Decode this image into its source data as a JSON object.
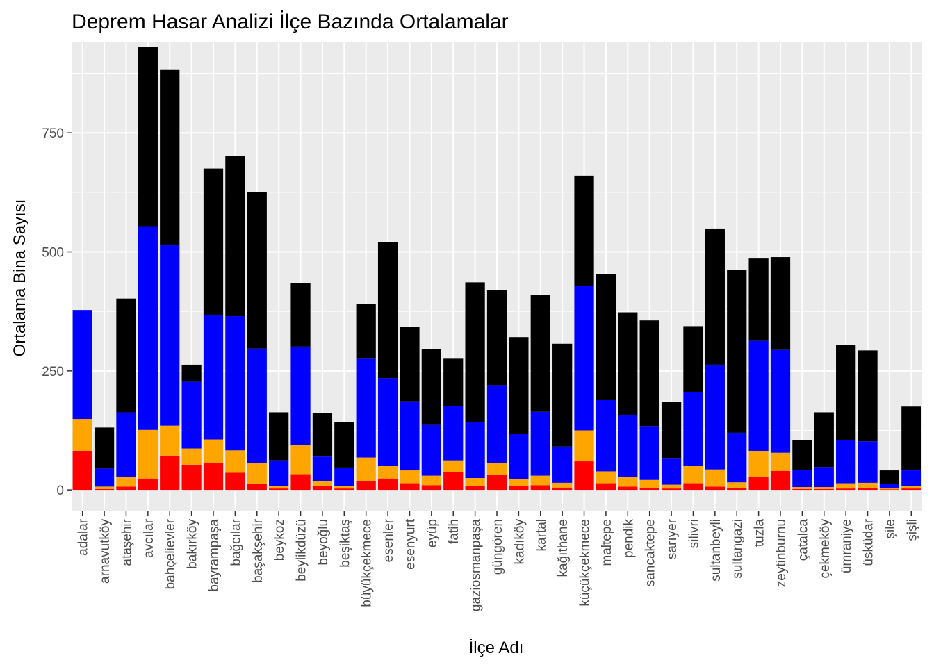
{
  "chart_data": {
    "type": "bar",
    "stacked": true,
    "title": "Deprem Hasar Analizi İlçe Bazında Ortalamalar",
    "xlabel": "İlçe Adı",
    "ylabel": "Ortalama Bina Sayısı",
    "ylim": [
      -45,
      940
    ],
    "yticks": [
      0,
      250,
      500,
      750
    ],
    "grid": true,
    "legend": "none",
    "categories": [
      "adalar",
      "arnavutköy",
      "ataşehir",
      "avcılar",
      "bahçelievler",
      "bakırköy",
      "bayrampaşa",
      "bağcılar",
      "başakşehir",
      "beykoz",
      "beylikdüzü",
      "beyoğlu",
      "beşiktaş",
      "büyükçekmece",
      "esenler",
      "esenyurt",
      "eyüp",
      "fatih",
      "gaziosmanpaşa",
      "güngören",
      "kadıköy",
      "kartal",
      "kağıthane",
      "küçükçekmece",
      "maltepe",
      "pendik",
      "sancaktepe",
      "sarıyer",
      "silivri",
      "sultanbeyli",
      "sultangazi",
      "tuzla",
      "zeytinburnu",
      "çatalca",
      "çekmeköy",
      "ümraniye",
      "üsküdar",
      "şile",
      "şişli"
    ],
    "series": [
      {
        "color": "#FF0000",
        "values": [
          82,
          2,
          7,
          24,
          72,
          53,
          56,
          36,
          12,
          3,
          33,
          8,
          3,
          18,
          24,
          14,
          10,
          37,
          8,
          32,
          9,
          10,
          5,
          60,
          14,
          7,
          4,
          3,
          14,
          7,
          4,
          27,
          40,
          2,
          2,
          3,
          4,
          1,
          3
        ]
      },
      {
        "color": "#FFA500",
        "values": [
          67,
          5,
          21,
          102,
          63,
          34,
          50,
          47,
          45,
          6,
          62,
          11,
          5,
          50,
          27,
          27,
          20,
          25,
          17,
          25,
          14,
          20,
          10,
          65,
          25,
          20,
          17,
          8,
          36,
          36,
          12,
          55,
          38,
          4,
          4,
          11,
          11,
          2,
          5
        ]
      },
      {
        "color": "#0000FF",
        "values": [
          229,
          38,
          135,
          428,
          380,
          140,
          262,
          282,
          240,
          53,
          206,
          51,
          39,
          209,
          184,
          145,
          108,
          114,
          117,
          163,
          94,
          134,
          76,
          304,
          150,
          130,
          113,
          56,
          156,
          220,
          104,
          231,
          216,
          36,
          42,
          90,
          87,
          10,
          33
        ]
      },
      {
        "color": "#000000",
        "values": [
          0,
          86,
          239,
          377,
          367,
          36,
          307,
          336,
          328,
          101,
          134,
          91,
          95,
          114,
          286,
          157,
          158,
          101,
          294,
          200,
          204,
          246,
          216,
          231,
          265,
          216,
          222,
          118,
          138,
          286,
          342,
          173,
          195,
          62,
          115,
          201,
          191,
          28,
          134
        ]
      }
    ]
  }
}
